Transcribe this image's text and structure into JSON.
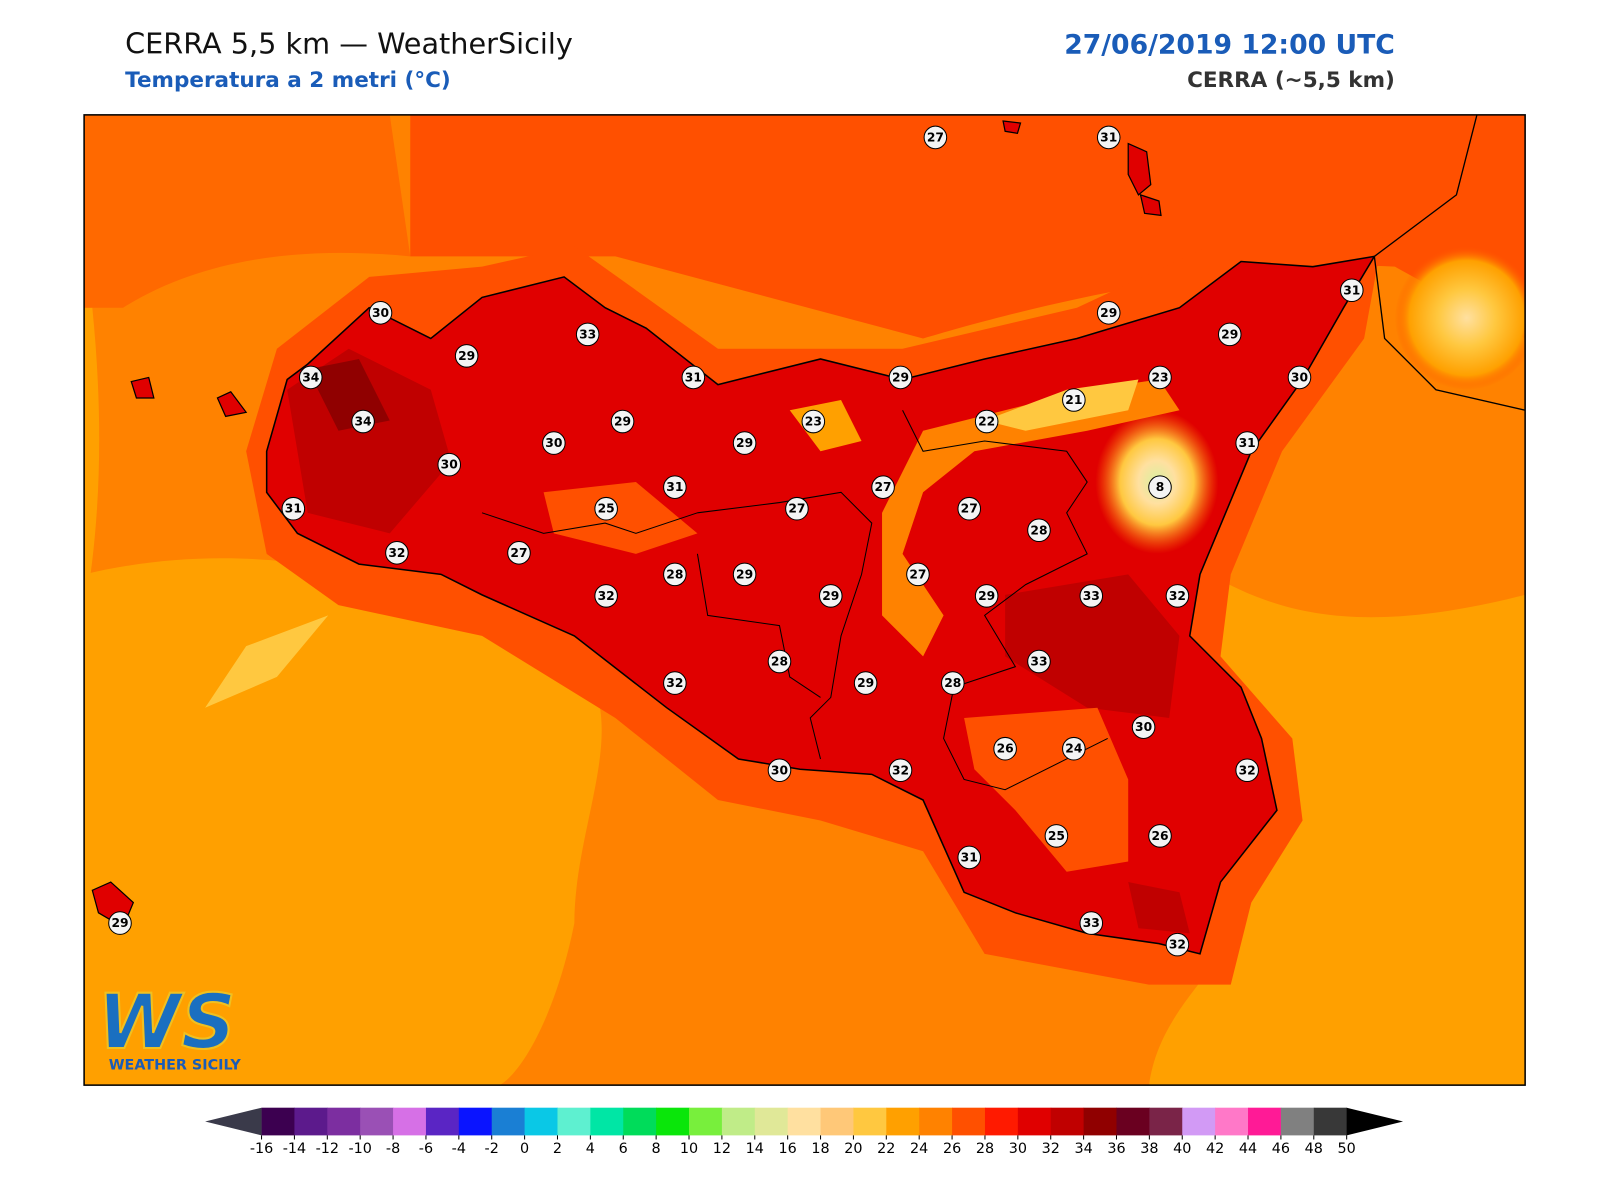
{
  "header": {
    "title": "CERRA 5,5 km — WeatherSicily",
    "subtitle": "Temperatura a 2 metri (°C)",
    "date": "27/06/2019 12:00 UTC",
    "model": "CERRA (~5,5 km)"
  },
  "stations": [
    27,
    31,
    30,
    33,
    29,
    34,
    31,
    29,
    29,
    29,
    31,
    30,
    23,
    21,
    22,
    23,
    29,
    34,
    30,
    29,
    31,
    30,
    31,
    27,
    8,
    31,
    25,
    27,
    27,
    28,
    32,
    27,
    28,
    29,
    27,
    32,
    29,
    29,
    33,
    32,
    33,
    28,
    32,
    29,
    28,
    30,
    26,
    24,
    30,
    32,
    32,
    25,
    26,
    31,
    33,
    32,
    29
  ],
  "colorbar": {
    "ticks": [
      -16,
      -14,
      -12,
      -10,
      -8,
      -6,
      -4,
      -2,
      0,
      2,
      4,
      6,
      8,
      10,
      12,
      14,
      16,
      18,
      20,
      22,
      24,
      26,
      28,
      30,
      32,
      34,
      36,
      38,
      40,
      42,
      44,
      46,
      48,
      50
    ],
    "colors": [
      "#3c0050",
      "#5c1a8c",
      "#7c2ea0",
      "#9a50b5",
      "#d670e6",
      "#5a25c4",
      "#0a14ff",
      "#1a7fd4",
      "#0ac8e6",
      "#5ef0d0",
      "#00e6a5",
      "#00dc5a",
      "#0ae60a",
      "#78ef3c",
      "#c0ec88",
      "#e0e898",
      "#ffe0a0",
      "#ffc878",
      "#ffc840",
      "#ffa000",
      "#ff8200",
      "#ff5000",
      "#ff1a00",
      "#e00000",
      "#c00000",
      "#900000",
      "#6a0020",
      "#7a2448",
      "#d29af5",
      "#ff78c8",
      "#ff1a96",
      "#808080",
      "#383838"
    ],
    "under_color": "#3a3a4a",
    "over_color": "#000000"
  },
  "logo": {
    "mark": "WS",
    "text": "WEATHER SICILY"
  }
}
